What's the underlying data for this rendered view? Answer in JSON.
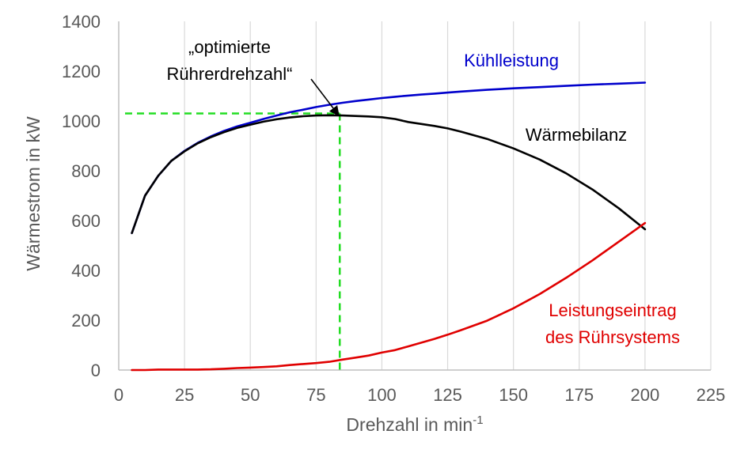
{
  "chart_data": {
    "type": "line",
    "xlabel": "Drehzahl in min",
    "xlabel_superscript": "-1",
    "ylabel": "Wärmestrom in kW",
    "xlim": [
      0,
      225
    ],
    "ylim": [
      0,
      1400
    ],
    "x_ticks": [
      0,
      25,
      50,
      75,
      100,
      125,
      150,
      175,
      200,
      225
    ],
    "y_ticks": [
      0,
      200,
      400,
      600,
      800,
      1000,
      1200,
      1400
    ],
    "grid": "vertical",
    "series": [
      {
        "name": "Kühlleistung",
        "color": "#0000cc",
        "x": [
          5,
          10,
          15,
          20,
          25,
          30,
          35,
          40,
          45,
          50,
          55,
          60,
          65,
          70,
          75,
          80,
          85,
          90,
          95,
          100,
          105,
          110,
          115,
          120,
          125,
          130,
          140,
          150,
          160,
          170,
          180,
          190,
          200
        ],
        "values": [
          550,
          700,
          780,
          840,
          880,
          912,
          938,
          960,
          978,
          993,
          1008,
          1022,
          1035,
          1045,
          1056,
          1065,
          1073,
          1080,
          1086,
          1092,
          1097,
          1102,
          1106,
          1110,
          1114,
          1118,
          1125,
          1131,
          1136,
          1141,
          1146,
          1150,
          1154
        ]
      },
      {
        "name": "Wärmebilanz",
        "color": "#000000",
        "x": [
          5,
          10,
          15,
          20,
          25,
          30,
          35,
          40,
          45,
          50,
          55,
          60,
          65,
          70,
          75,
          80,
          85,
          90,
          95,
          100,
          105,
          110,
          115,
          120,
          125,
          130,
          140,
          150,
          160,
          170,
          180,
          190,
          200
        ],
        "values": [
          550,
          700,
          780,
          840,
          878,
          910,
          935,
          955,
          972,
          985,
          997,
          1007,
          1014,
          1019,
          1022,
          1023,
          1022,
          1020,
          1018,
          1015,
          1008,
          996,
          988,
          980,
          970,
          957,
          928,
          890,
          845,
          790,
          725,
          650,
          565
        ]
      },
      {
        "name": "Leistungseintrag des Rührsystems",
        "color": "#e00000",
        "x": [
          5,
          10,
          15,
          20,
          25,
          30,
          35,
          40,
          45,
          50,
          55,
          60,
          65,
          70,
          75,
          80,
          85,
          90,
          95,
          100,
          105,
          110,
          115,
          120,
          125,
          130,
          140,
          150,
          160,
          170,
          180,
          190,
          200
        ],
        "values": [
          0,
          0,
          2,
          2,
          2,
          2,
          3,
          5,
          8,
          10,
          12,
          15,
          20,
          24,
          28,
          33,
          42,
          50,
          58,
          70,
          80,
          95,
          110,
          125,
          142,
          160,
          198,
          248,
          305,
          370,
          440,
          515,
          590
        ]
      }
    ],
    "annotations": {
      "optimum_line1": "„optimierte",
      "optimum_line2": "Rührerdrehzahl“",
      "optimum_x": 84,
      "optimum_y": 1030,
      "label_kuehl": "Kühlleistung",
      "label_waerme": "Wärmebilanz",
      "label_leistung1": "Leistungseintrag",
      "label_leistung2": "des Rührsystems"
    },
    "colors": {
      "guide": "#22dd22",
      "grid": "#d9d9d9",
      "axis": "#bfbfbf"
    }
  }
}
